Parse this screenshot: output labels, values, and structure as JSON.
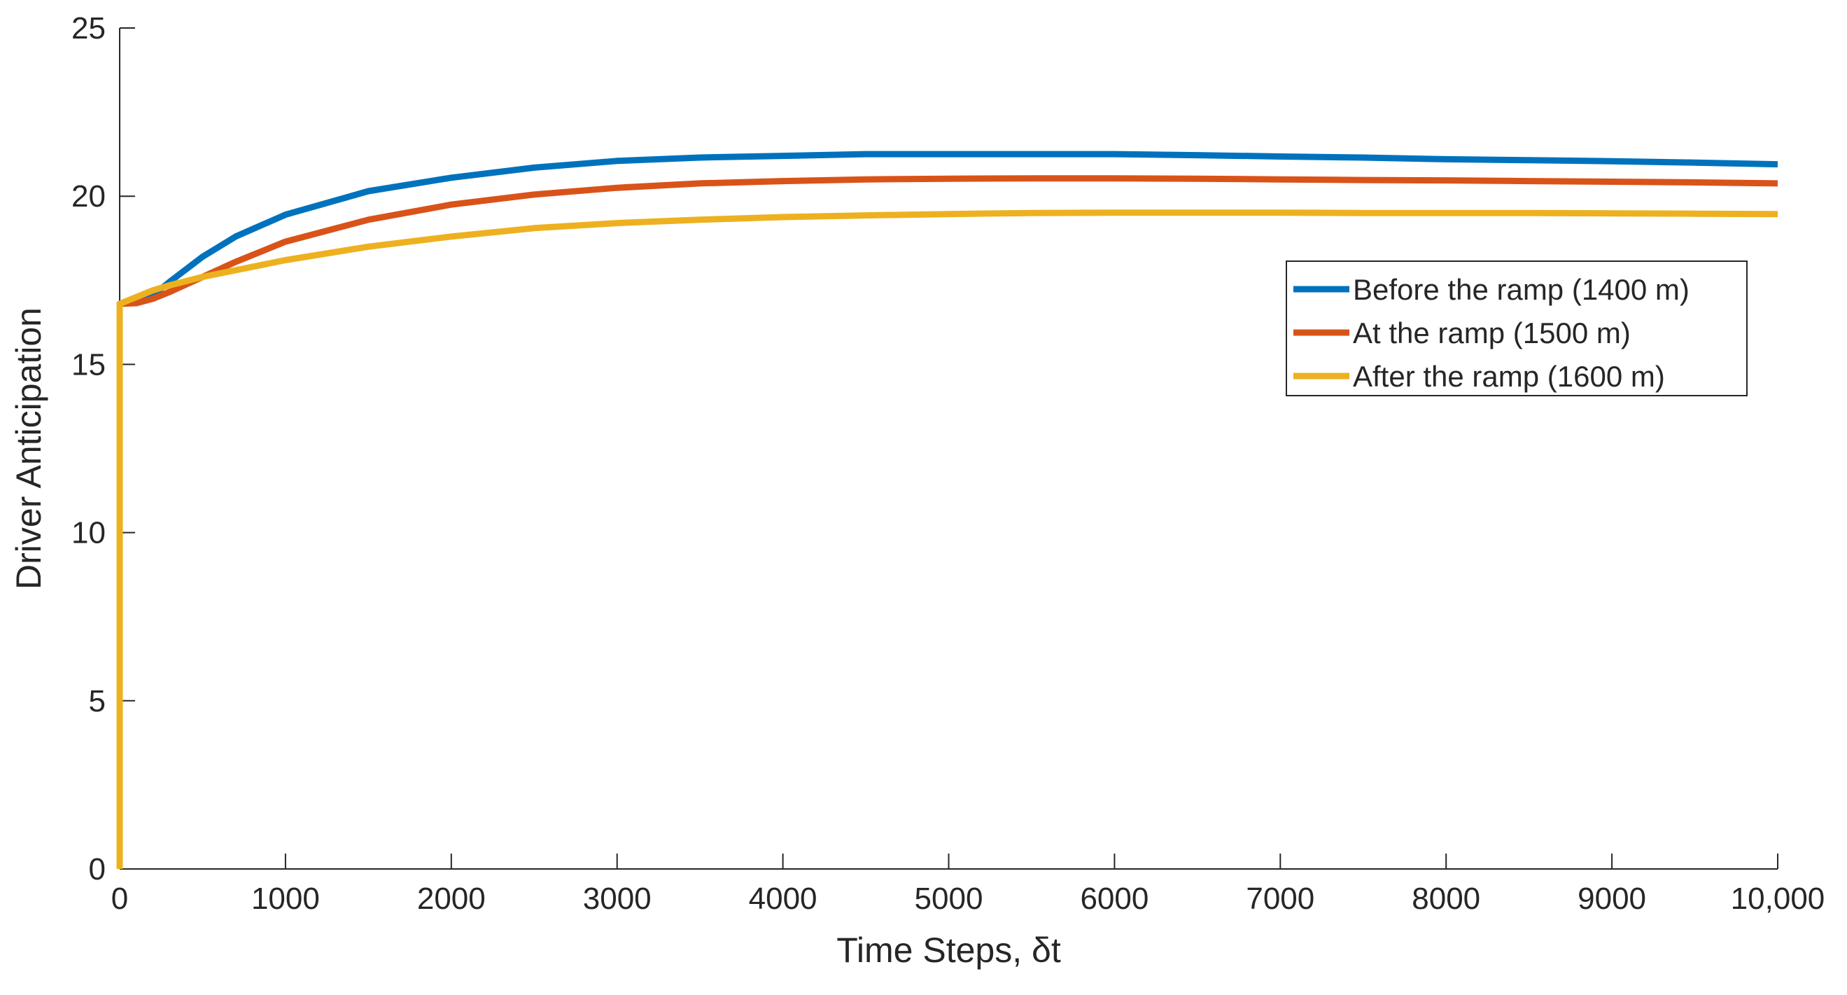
{
  "chart_data": {
    "type": "line",
    "title": "",
    "xlabel": "Time Steps, δt",
    "ylabel": "Driver Anticipation",
    "xlim": [
      0,
      10000
    ],
    "ylim": [
      0,
      25
    ],
    "xticks": [
      0,
      1000,
      2000,
      3000,
      4000,
      5000,
      6000,
      7000,
      8000,
      9000,
      10000
    ],
    "xtick_labels": [
      "0",
      "1000",
      "2000",
      "3000",
      "4000",
      "5000",
      "6000",
      "7000",
      "8000",
      "9000",
      "10,000"
    ],
    "yticks": [
      0,
      5,
      10,
      15,
      20,
      25
    ],
    "ytick_labels": [
      "0",
      "5",
      "10",
      "15",
      "20",
      "25"
    ],
    "grid": false,
    "legend_position": "right, upper-middle",
    "series": [
      {
        "name": "Before the ramp (1400 m)",
        "color": "#0072BD",
        "x": [
          0,
          0,
          100,
          200,
          300,
          500,
          700,
          1000,
          1500,
          2000,
          2500,
          3000,
          3500,
          4000,
          4500,
          5000,
          5500,
          6000,
          6500,
          7000,
          7500,
          8000,
          8500,
          9000,
          9500,
          10000
        ],
        "y": [
          0,
          16.8,
          16.85,
          17.05,
          17.45,
          18.2,
          18.8,
          19.45,
          20.15,
          20.55,
          20.85,
          21.05,
          21.15,
          21.2,
          21.25,
          21.25,
          21.25,
          21.25,
          21.22,
          21.18,
          21.15,
          21.1,
          21.07,
          21.04,
          21.0,
          20.95
        ]
      },
      {
        "name": "At the ramp (1500 m)",
        "color": "#D95319",
        "x": [
          0,
          0,
          100,
          200,
          300,
          500,
          700,
          1000,
          1500,
          2000,
          2500,
          3000,
          3500,
          4000,
          4500,
          5000,
          5500,
          6000,
          6500,
          7000,
          7500,
          8000,
          8500,
          9000,
          9500,
          10000
        ],
        "y": [
          0,
          16.8,
          16.82,
          16.95,
          17.15,
          17.6,
          18.05,
          18.65,
          19.3,
          19.75,
          20.05,
          20.25,
          20.38,
          20.45,
          20.5,
          20.52,
          20.53,
          20.53,
          20.52,
          20.5,
          20.48,
          20.47,
          20.45,
          20.43,
          20.41,
          20.38
        ]
      },
      {
        "name": "After the ramp (1600 m)",
        "color": "#EDB120",
        "x": [
          0,
          0,
          100,
          200,
          300,
          500,
          700,
          1000,
          1500,
          2000,
          2500,
          3000,
          3500,
          4000,
          4500,
          5000,
          5500,
          6000,
          6500,
          7000,
          7500,
          8000,
          8500,
          9000,
          9500,
          10000
        ],
        "y": [
          0,
          16.8,
          17.0,
          17.2,
          17.35,
          17.6,
          17.8,
          18.1,
          18.5,
          18.8,
          19.05,
          19.2,
          19.3,
          19.38,
          19.43,
          19.47,
          19.5,
          19.51,
          19.51,
          19.51,
          19.5,
          19.5,
          19.5,
          19.49,
          19.48,
          19.47
        ]
      }
    ]
  }
}
